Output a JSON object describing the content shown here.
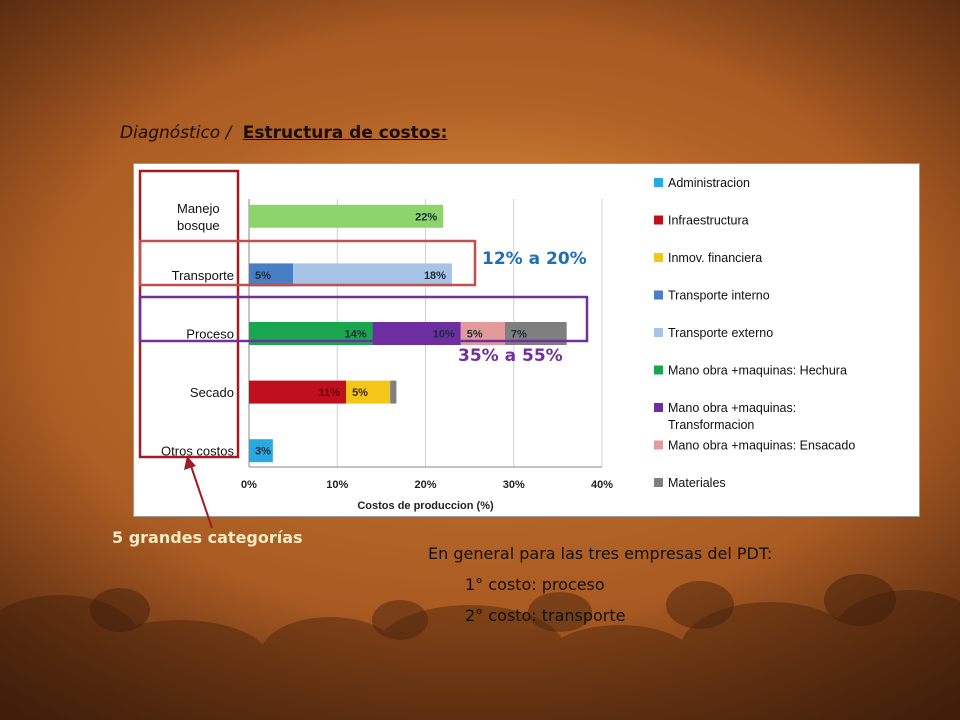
{
  "slide": {
    "title_prefix": "Diagnóstico /",
    "title_main": "Estructura de costos:",
    "range_transport": "12% a 20%",
    "range_process": "35% a 55%",
    "categories_note": "5 grandes categorías",
    "summary_heading": "En general para las tres empresas del PDT:",
    "summary_items": [
      "1° costo: proceso",
      "2° costo: transporte"
    ]
  },
  "colors": {
    "Administracion": "#29a9e1",
    "Infraestructura": "#c0101e",
    "Inmov. financiera": "#f5c518",
    "Transporte interno": "#4a7ec4",
    "Transporte externo": "#a7c4e8",
    "Mano obra +maquinas: Hechura": "#1aa64f",
    "Mano obra +maquinas: Transformacion": "#6d2ea0",
    "Mano obra +maquinas: Ensacado": "#e29a9a",
    "Materiales": "#7f7f7f",
    "Manejo bosque": "#8dd46a",
    "highlight_red": "#a01c22",
    "highlight_purple": "#7030a0",
    "range_blue": "#1e6fb5"
  },
  "chart_data": {
    "type": "bar",
    "orientation": "horizontal",
    "stacked": true,
    "categories": [
      "Manejo bosque",
      "Transporte",
      "Proceso",
      "Secado",
      "Otros costos"
    ],
    "xlabel": "Costos de produccion (%)",
    "xlim": [
      0,
      40
    ],
    "xticks": [
      "0%",
      "10%",
      "20%",
      "30%",
      "40%"
    ],
    "grid": true,
    "legend_position": "right",
    "bars": [
      {
        "category": "Manejo bosque",
        "segments": [
          {
            "series": "Manejo bosque",
            "value": 22,
            "label": "22%"
          }
        ]
      },
      {
        "category": "Transporte",
        "segments": [
          {
            "series": "Transporte interno",
            "value": 5,
            "label": "5%"
          },
          {
            "series": "Transporte externo",
            "value": 18,
            "label": "18%"
          }
        ]
      },
      {
        "category": "Proceso",
        "segments": [
          {
            "series": "Mano obra +maquinas: Hechura",
            "value": 14,
            "label": "14%"
          },
          {
            "series": "Mano obra +maquinas: Transformacion",
            "value": 10,
            "label": "10%"
          },
          {
            "series": "Mano obra +maquinas: Ensacado",
            "value": 5,
            "label": "5%"
          },
          {
            "series": "Materiales",
            "value": 7,
            "label": "7%"
          }
        ]
      },
      {
        "category": "Secado",
        "segments": [
          {
            "series": "Infraestructura",
            "value": 11,
            "label": "11%"
          },
          {
            "series": "Inmov. financiera",
            "value": 5,
            "label": "5%"
          },
          {
            "series": "Materiales",
            "value": 0.7,
            "label": ""
          }
        ]
      },
      {
        "category": "Otros costos",
        "segments": [
          {
            "series": "Administracion",
            "value": 2.7,
            "label": "3%"
          }
        ]
      }
    ],
    "legend": [
      "Administracion",
      "Infraestructura",
      "Inmov. financiera",
      "Transporte interno",
      "Transporte externo",
      "Mano obra +maquinas: Hechura",
      "Mano obra +maquinas: Transformacion",
      "Mano obra +maquinas: Ensacado",
      "Materiales"
    ]
  }
}
